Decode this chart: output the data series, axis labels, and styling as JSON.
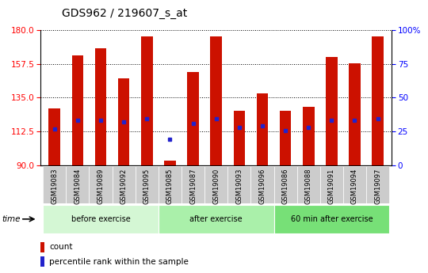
{
  "title": "GDS962 / 219607_s_at",
  "samples": [
    "GSM19083",
    "GSM19084",
    "GSM19089",
    "GSM19092",
    "GSM19095",
    "GSM19085",
    "GSM19087",
    "GSM19090",
    "GSM19093",
    "GSM19096",
    "GSM19086",
    "GSM19088",
    "GSM19091",
    "GSM19094",
    "GSM19097"
  ],
  "groups": [
    {
      "label": "before exercise",
      "start": 0,
      "end": 5,
      "color": "#d4f7d4"
    },
    {
      "label": "after exercise",
      "start": 5,
      "end": 10,
      "color": "#aaf0aa"
    },
    {
      "label": "60 min after exercise",
      "start": 10,
      "end": 15,
      "color": "#77e077"
    }
  ],
  "bar_tops": [
    128,
    163,
    168,
    148,
    176,
    93,
    152,
    176,
    126,
    138,
    126,
    129,
    162,
    158,
    176
  ],
  "bar_bottom": 90,
  "blue_values": [
    114,
    120,
    120,
    119,
    121,
    107,
    118,
    121,
    115,
    116,
    113,
    115,
    120,
    120,
    121
  ],
  "ylim_left": [
    90,
    180
  ],
  "yticks_left": [
    90,
    112.5,
    135,
    157.5,
    180
  ],
  "ylim_right": [
    0,
    100
  ],
  "yticks_right": [
    0,
    25,
    50,
    75,
    100
  ],
  "bar_color": "#cc1100",
  "blue_color": "#2222cc",
  "label_bg_color": "#cccccc",
  "bar_width": 0.5
}
